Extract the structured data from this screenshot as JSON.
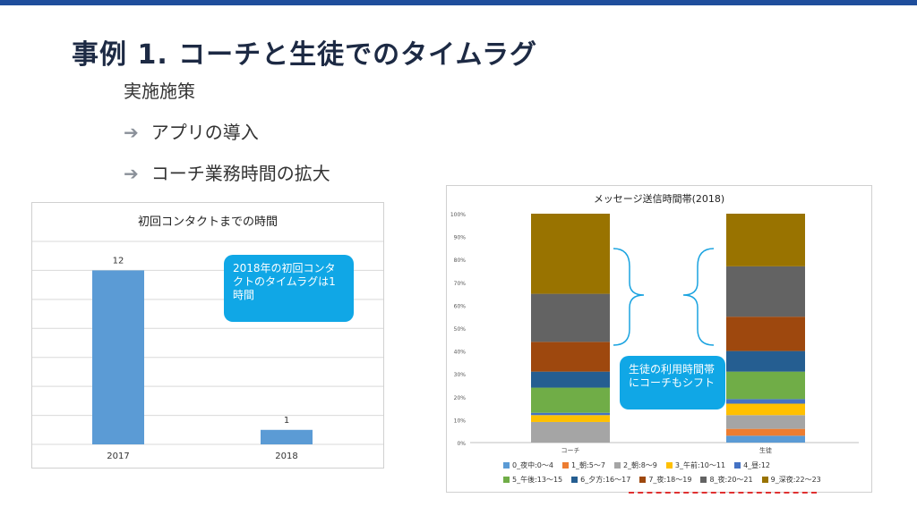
{
  "slide": {
    "title": "事例 1. コーチと生徒でのタイムラグ",
    "measures_label": "実施施策",
    "measures": [
      {
        "arrow": "➔",
        "text": "アプリの導入"
      },
      {
        "arrow": "➔",
        "text": "コーチ業務時間の拡大"
      }
    ],
    "callout_left": "2018年の初回コンタクトのタイムラグは1時間",
    "callout_right": "生徒の利用時間帯にコーチもシフト"
  },
  "chart_data": [
    {
      "type": "bar",
      "title": "初回コンタクトまでの時間",
      "categories": [
        "2017",
        "2018"
      ],
      "values": [
        12,
        1
      ],
      "data_labels": [
        "12",
        "1"
      ],
      "ylim": [
        0,
        14
      ],
      "color": "#5b9bd5",
      "grid": true
    },
    {
      "type": "bar",
      "stacked": "percent",
      "title": "メッセージ送信時間帯(2018)",
      "categories": [
        "コーチ",
        "生徒"
      ],
      "ylim": [
        0,
        100
      ],
      "yticks": [
        "0%",
        "10%",
        "20%",
        "30%",
        "40%",
        "50%",
        "60%",
        "70%",
        "80%",
        "90%",
        "100%"
      ],
      "series": [
        {
          "name": "0_夜中:0～4",
          "color": "#5b9bd5",
          "values": [
            0,
            3
          ]
        },
        {
          "name": "1_朝:5～7",
          "color": "#ed7d31",
          "values": [
            0,
            3
          ]
        },
        {
          "name": "2_朝:8～9",
          "color": "#a5a5a5",
          "values": [
            9,
            6
          ]
        },
        {
          "name": "3_午前:10～11",
          "color": "#ffc000",
          "values": [
            3,
            5
          ]
        },
        {
          "name": "4_昼:12",
          "color": "#4472c4",
          "values": [
            1,
            2
          ]
        },
        {
          "name": "5_午後:13～15",
          "color": "#70ad47",
          "values": [
            11,
            12
          ]
        },
        {
          "name": "6_夕方:16～17",
          "color": "#255e91",
          "values": [
            7,
            9
          ]
        },
        {
          "name": "7_夜:18～19",
          "color": "#9e480e",
          "values": [
            13,
            15
          ]
        },
        {
          "name": "8_夜:20～21",
          "color": "#636363",
          "values": [
            21,
            22
          ]
        },
        {
          "name": "9_深夜:22～23",
          "color": "#997300",
          "values": [
            35,
            23
          ]
        }
      ],
      "legend_position": "bottom"
    }
  ]
}
